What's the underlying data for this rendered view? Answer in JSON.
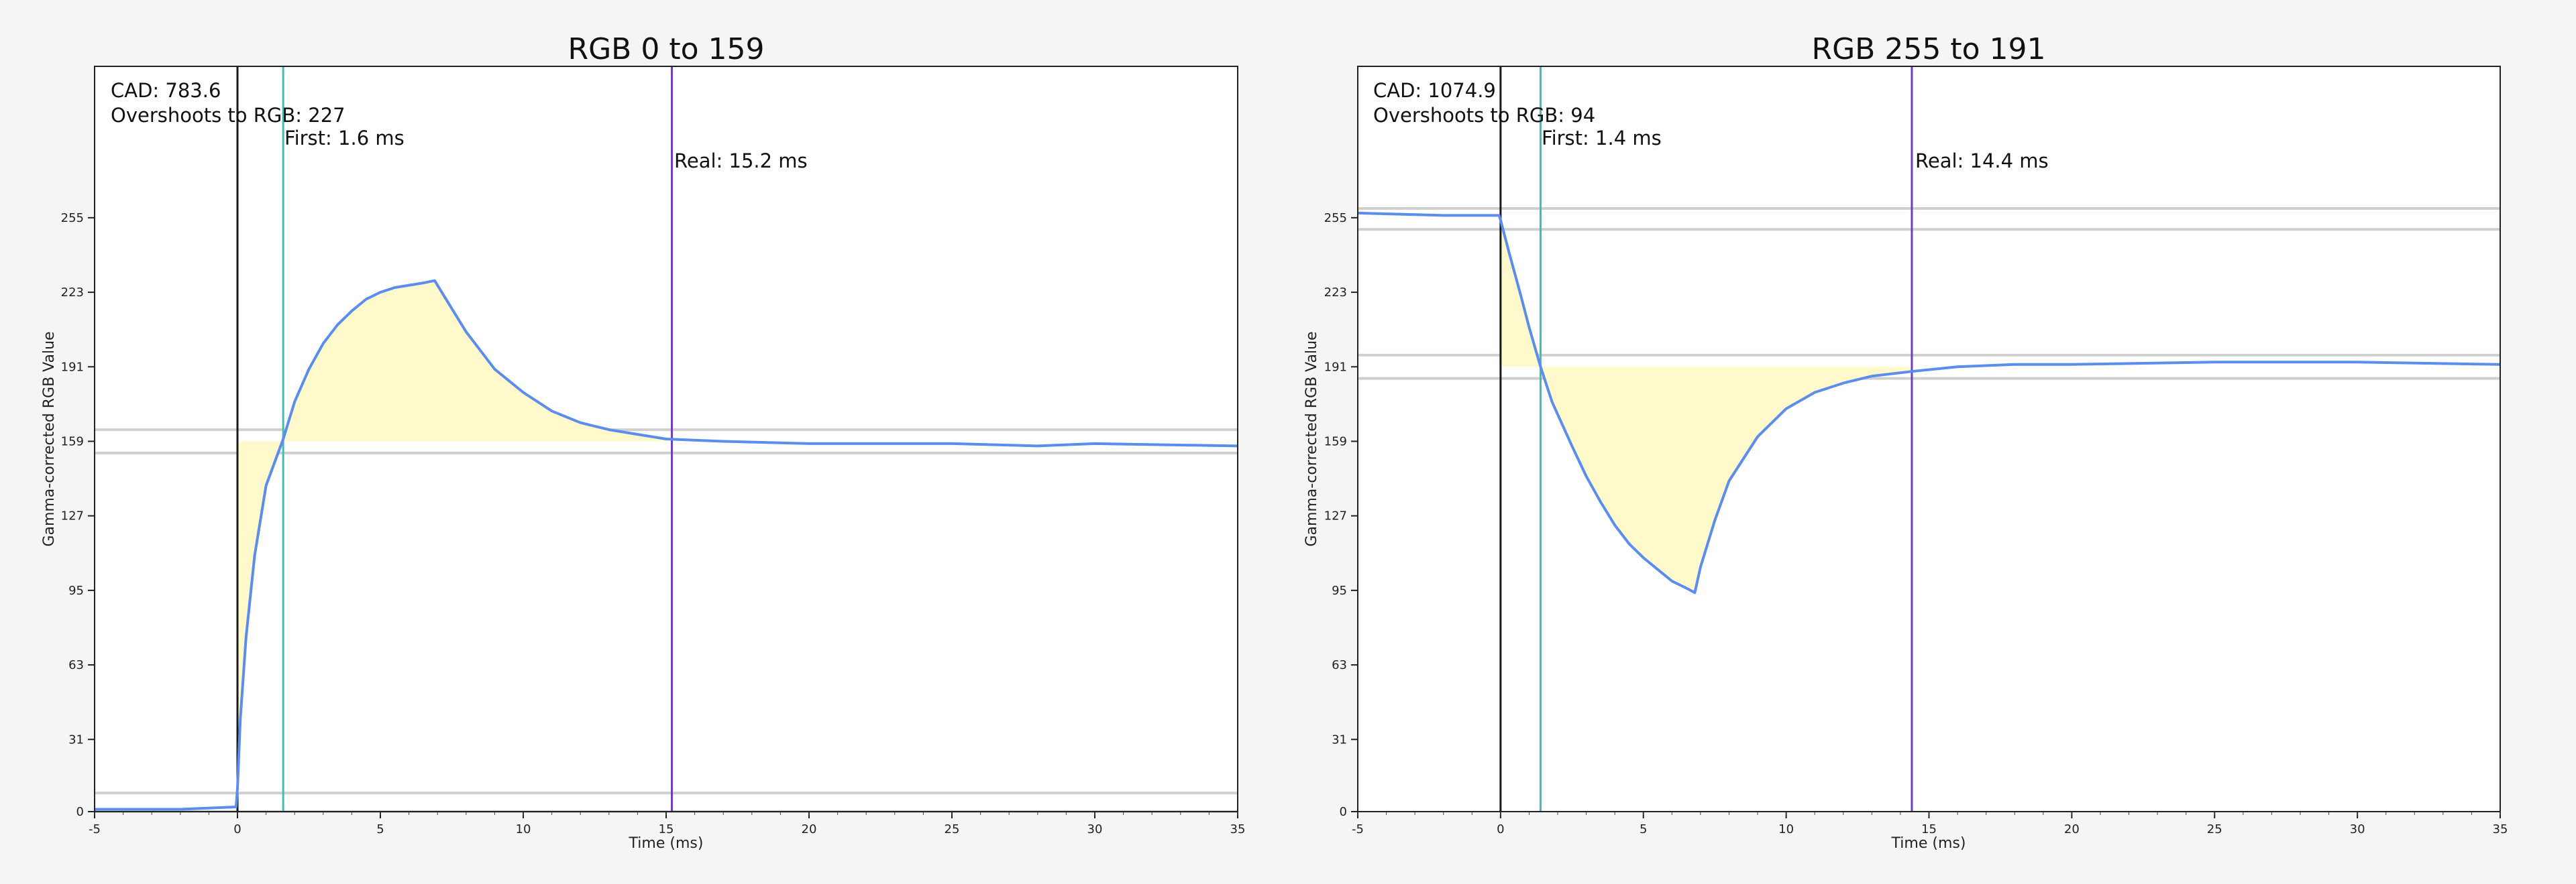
{
  "chart_data": [
    {
      "type": "line",
      "title": "RGB 0 to 159",
      "xlabel": "Time (ms)",
      "ylabel": "Gamma-corrected RGB Value",
      "xlim": [
        -5,
        35
      ],
      "ylim": [
        0,
        320
      ],
      "xticks": [
        -5,
        0,
        5,
        10,
        15,
        20,
        25,
        30,
        35
      ],
      "yticks": [
        0,
        31,
        63,
        95,
        127,
        159,
        191,
        223,
        255
      ],
      "start_value": 0,
      "target_value": 159,
      "tolerance_band": [
        154,
        164
      ],
      "initial_band": [
        0,
        8
      ],
      "markers": {
        "start": 0,
        "first": 1.6,
        "real": 15.2
      },
      "annotations": {
        "cad": "CAD: 783.6",
        "overshoot": "Overshoots to RGB: 227",
        "first": "First: 1.6 ms",
        "real": "Real: 15.2 ms"
      },
      "series": [
        {
          "x": [
            -5,
            -2,
            -0.05,
            0,
            0.1,
            0.3,
            0.6,
            1.0,
            1.6,
            2.0,
            2.5,
            3.0,
            3.5,
            4.0,
            4.5,
            5.0,
            5.5,
            6.0,
            6.5,
            6.9,
            7.5,
            8.0,
            9.0,
            10.0,
            11.0,
            12.0,
            13.0,
            14.0,
            15.0,
            17.0,
            20.0,
            25.0,
            28.0,
            30.0,
            35.0
          ],
          "y": [
            1,
            1,
            2,
            10,
            40,
            75,
            110,
            140,
            160,
            176,
            190,
            201,
            209,
            215,
            220,
            223,
            225,
            226,
            227,
            228,
            216,
            206,
            190,
            180,
            172,
            167,
            164,
            162,
            160,
            159,
            158,
            158,
            157,
            158,
            157
          ]
        }
      ]
    },
    {
      "type": "line",
      "title": "RGB 255 to 191",
      "xlabel": "Time (ms)",
      "ylabel": "Gamma-corrected RGB Value",
      "xlim": [
        -5,
        35
      ],
      "ylim": [
        0,
        320
      ],
      "xticks": [
        -5,
        0,
        5,
        10,
        15,
        20,
        25,
        30,
        35
      ],
      "yticks": [
        0,
        31,
        63,
        95,
        127,
        159,
        191,
        223,
        255
      ],
      "start_value": 255,
      "target_value": 191,
      "tolerance_band": [
        186,
        196
      ],
      "initial_band": [
        250,
        259
      ],
      "markers": {
        "start": 0,
        "first": 1.4,
        "real": 14.4
      },
      "annotations": {
        "cad": "CAD: 1074.9",
        "overshoot": "Overshoots to RGB: 94",
        "first": "First: 1.4 ms",
        "real": "Real: 14.4 ms"
      },
      "series": [
        {
          "x": [
            -5,
            -2,
            -0.05,
            0,
            0.3,
            0.7,
            1.0,
            1.4,
            1.8,
            2.5,
            3.0,
            3.5,
            4.0,
            4.5,
            5.0,
            5.5,
            6.0,
            6.5,
            6.8,
            7.0,
            7.5,
            8.0,
            9.0,
            10.0,
            11.0,
            12.0,
            13.0,
            14.4,
            16.0,
            18.0,
            20.0,
            25.0,
            30.0,
            35.0
          ],
          "y": [
            257,
            256,
            256,
            254,
            240,
            222,
            208,
            191,
            176,
            157,
            144,
            133,
            123,
            115,
            109,
            104,
            99,
            96,
            94,
            105,
            125,
            142,
            161,
            173,
            180,
            184,
            187,
            189,
            191,
            192,
            192,
            193,
            193,
            192
          ]
        }
      ]
    }
  ]
}
